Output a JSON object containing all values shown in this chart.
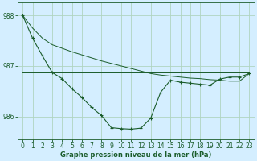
{
  "bg_color": "#d4eeff",
  "plot_bg_color": "#d4eeff",
  "grid_color": "#b0d4c0",
  "line_color": "#1a5c2a",
  "ylabel_ticks": [
    986,
    987,
    988
  ],
  "xlim": [
    -0.5,
    23.5
  ],
  "ylim": [
    985.55,
    988.25
  ],
  "xlabel": "Graphe pression niveau de la mer (hPa)",
  "x": [
    0,
    1,
    2,
    3,
    4,
    5,
    6,
    7,
    8,
    9,
    10,
    11,
    12,
    13,
    14,
    15,
    16,
    17,
    18,
    19,
    20,
    21,
    22,
    23
  ],
  "y_main": [
    988.0,
    987.55,
    987.2,
    986.87,
    986.75,
    986.55,
    986.38,
    986.18,
    986.02,
    985.78,
    985.76,
    985.75,
    985.77,
    985.97,
    986.48,
    986.72,
    986.68,
    986.66,
    986.64,
    986.62,
    986.74,
    986.78,
    986.78,
    986.85
  ],
  "y_upper": [
    988.0,
    987.75,
    987.55,
    987.42,
    987.35,
    987.28,
    987.22,
    987.16,
    987.1,
    987.05,
    987.0,
    986.95,
    986.9,
    986.85,
    986.82,
    986.8,
    986.78,
    986.76,
    986.75,
    986.73,
    986.72,
    986.7,
    986.7,
    986.85
  ],
  "y_lower": [
    988.0,
    987.55,
    987.2,
    986.87,
    986.75,
    986.55,
    986.38,
    986.18,
    986.02,
    985.78,
    985.76,
    985.75,
    985.77,
    985.97,
    986.48,
    986.72,
    986.68,
    986.66,
    986.64,
    986.62,
    986.74,
    986.78,
    986.78,
    986.85
  ],
  "y_flat": [
    986.87,
    986.87,
    986.87,
    986.87,
    986.87,
    986.87,
    986.87,
    986.87,
    986.87,
    986.87,
    986.87,
    986.87,
    986.87,
    986.87,
    986.87,
    986.87,
    986.87,
    986.87,
    986.87,
    986.87,
    986.87,
    986.87,
    986.87,
    986.87
  ]
}
